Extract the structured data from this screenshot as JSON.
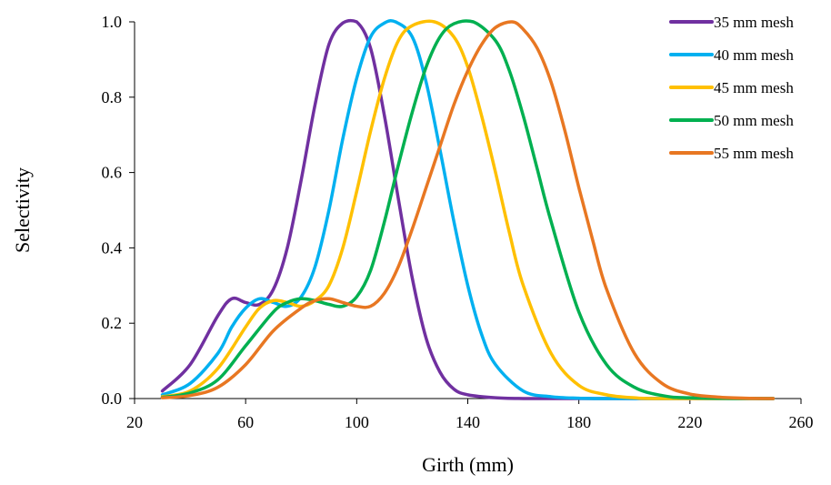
{
  "chart_data": {
    "type": "line",
    "xlabel": "Girth  (mm)",
    "ylabel": "Selectivity",
    "xlim": [
      20,
      260
    ],
    "ylim": [
      0,
      1
    ],
    "x_ticks": [
      "20",
      "60",
      "100",
      "140",
      "180",
      "220",
      "260"
    ],
    "y_ticks": [
      "0.0",
      "0.2",
      "0.4",
      "0.6",
      "0.8",
      "1.0"
    ],
    "grid": false,
    "legend_position": "top-right",
    "series": [
      {
        "name": "35 mm mesh",
        "color": "#7030A0",
        "x": [
          30,
          40,
          50,
          55,
          60,
          65,
          70,
          75,
          80,
          85,
          90,
          95,
          100,
          105,
          110,
          115,
          120,
          125,
          130,
          135,
          140,
          150,
          160,
          170,
          190,
          250
        ],
        "y": [
          0.02,
          0.09,
          0.22,
          0.265,
          0.255,
          0.25,
          0.29,
          0.4,
          0.58,
          0.78,
          0.94,
          0.997,
          1.0,
          0.93,
          0.75,
          0.53,
          0.32,
          0.16,
          0.07,
          0.025,
          0.01,
          0.002,
          0.0,
          0.0,
          0.0,
          0.0
        ]
      },
      {
        "name": "40 mm mesh",
        "color": "#00B0F0",
        "x": [
          30,
          40,
          50,
          55,
          60,
          65,
          70,
          75,
          80,
          85,
          90,
          95,
          100,
          105,
          110,
          114,
          120,
          125,
          130,
          135,
          140,
          145,
          150,
          160,
          170,
          180,
          190,
          200,
          250
        ],
        "y": [
          0.01,
          0.04,
          0.12,
          0.19,
          0.24,
          0.265,
          0.255,
          0.245,
          0.27,
          0.35,
          0.5,
          0.69,
          0.85,
          0.96,
          0.997,
          1.0,
          0.96,
          0.84,
          0.66,
          0.47,
          0.3,
          0.17,
          0.09,
          0.02,
          0.005,
          0.001,
          0.0,
          0.0,
          0.0
        ]
      },
      {
        "name": "45 mm mesh",
        "color": "#FFC000",
        "x": [
          30,
          40,
          50,
          60,
          65,
          70,
          75,
          80,
          85,
          90,
          95,
          100,
          105,
          110,
          115,
          120,
          128,
          135,
          140,
          145,
          150,
          155,
          160,
          170,
          180,
          190,
          200,
          210,
          250
        ],
        "y": [
          0.005,
          0.02,
          0.08,
          0.19,
          0.24,
          0.26,
          0.255,
          0.245,
          0.26,
          0.3,
          0.4,
          0.55,
          0.71,
          0.85,
          0.95,
          0.99,
          1.0,
          0.96,
          0.88,
          0.75,
          0.6,
          0.44,
          0.3,
          0.12,
          0.035,
          0.01,
          0.002,
          0.0,
          0.0
        ]
      },
      {
        "name": "50 mm mesh",
        "color": "#00B050",
        "x": [
          30,
          40,
          50,
          60,
          70,
          75,
          80,
          85,
          90,
          95,
          100,
          105,
          110,
          115,
          120,
          125,
          130,
          135,
          142,
          150,
          155,
          160,
          165,
          170,
          180,
          190,
          200,
          210,
          220,
          250
        ],
        "y": [
          0.003,
          0.015,
          0.05,
          0.14,
          0.23,
          0.255,
          0.265,
          0.26,
          0.25,
          0.245,
          0.27,
          0.34,
          0.47,
          0.62,
          0.76,
          0.88,
          0.96,
          0.995,
          1.0,
          0.95,
          0.87,
          0.75,
          0.61,
          0.47,
          0.23,
          0.09,
          0.03,
          0.008,
          0.002,
          0.0
        ]
      },
      {
        "name": "55 mm mesh",
        "color": "#E87722",
        "x": [
          30,
          40,
          50,
          60,
          70,
          80,
          85,
          90,
          95,
          100,
          105,
          110,
          115,
          120,
          125,
          130,
          135,
          140,
          145,
          150,
          156,
          160,
          165,
          170,
          175,
          180,
          185,
          190,
          200,
          210,
          220,
          230,
          240,
          250
        ],
        "y": [
          0.002,
          0.008,
          0.03,
          0.09,
          0.18,
          0.24,
          0.26,
          0.265,
          0.255,
          0.245,
          0.245,
          0.28,
          0.35,
          0.45,
          0.56,
          0.67,
          0.78,
          0.87,
          0.94,
          0.985,
          1.0,
          0.98,
          0.93,
          0.84,
          0.71,
          0.56,
          0.42,
          0.29,
          0.12,
          0.04,
          0.012,
          0.004,
          0.001,
          0.0
        ]
      }
    ]
  }
}
